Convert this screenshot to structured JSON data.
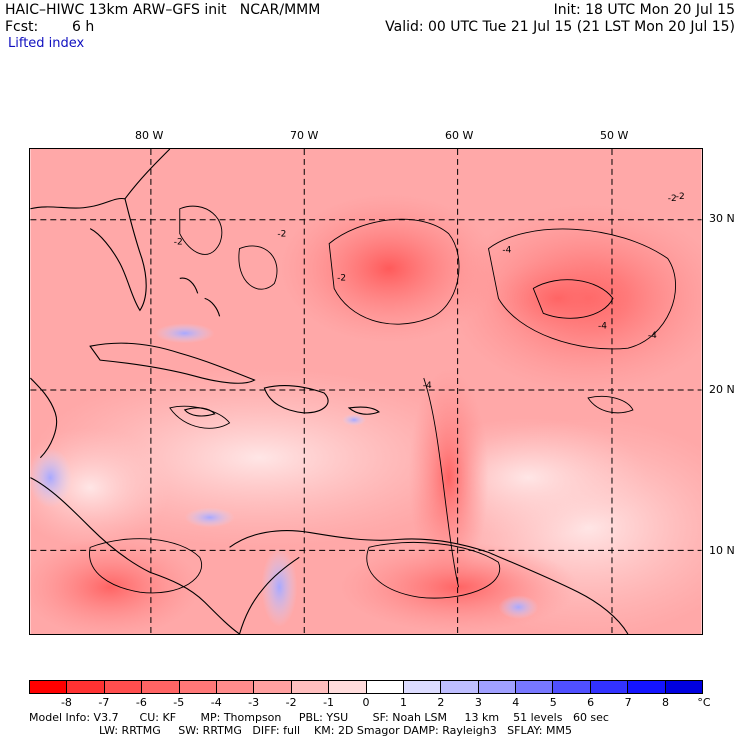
{
  "header": {
    "title_left": "HAIC–HIWC 13km ARW–GFS init   NCAR/MMM",
    "init_text": "Init: 18 UTC Mon 20 Jul 15",
    "fcst_label": "Fcst:",
    "fcst_value": "6 h",
    "valid_text": "Valid: 00 UTC Tue 21 Jul 15 (21 LST Mon 20 Jul 15)",
    "field_name": "Lifted index"
  },
  "map": {
    "longitude_labels": [
      "80 W",
      "70 W",
      "60 W",
      "50 W"
    ],
    "latitude_labels": [
      "30 N",
      "20 N",
      "10 N"
    ],
    "contour_labels": [
      "-2",
      "-2",
      "-2",
      "-2",
      "-4",
      "-4",
      "-4",
      "-4",
      "-2"
    ],
    "colors": {
      "land_outline": "#000000",
      "grid_line": "#000000",
      "background": "#ffffff"
    }
  },
  "colorbar": {
    "unit": "°C",
    "tick_labels": [
      "-8",
      "-7",
      "-6",
      "-5",
      "-4",
      "-3",
      "-2",
      "-1",
      "0",
      "1",
      "2",
      "3",
      "4",
      "5",
      "6",
      "7",
      "8"
    ],
    "colors": [
      "#ff0000",
      "#ff3232",
      "#ff4e4e",
      "#ff6464",
      "#ff7878",
      "#ff8c8c",
      "#ffa0a0",
      "#ffbebe",
      "#ffdcdc",
      "#ffffff",
      "#dcdcff",
      "#bebeff",
      "#a0a0ff",
      "#7878ff",
      "#5050ff",
      "#3232ff",
      "#1414ff",
      "#0000e0"
    ]
  },
  "model_info": {
    "line1": "Model Info: V3.7      CU: KF       MP: Thompson     PBL: YSU       SF: Noah LSM     13 km    51 levels   60 sec",
    "line2": "LW: RRTMG     SW: RRTMG   DIFF: full    KM: 2D Smagor DAMP: Rayleigh3   SFLAY: MM5"
  }
}
